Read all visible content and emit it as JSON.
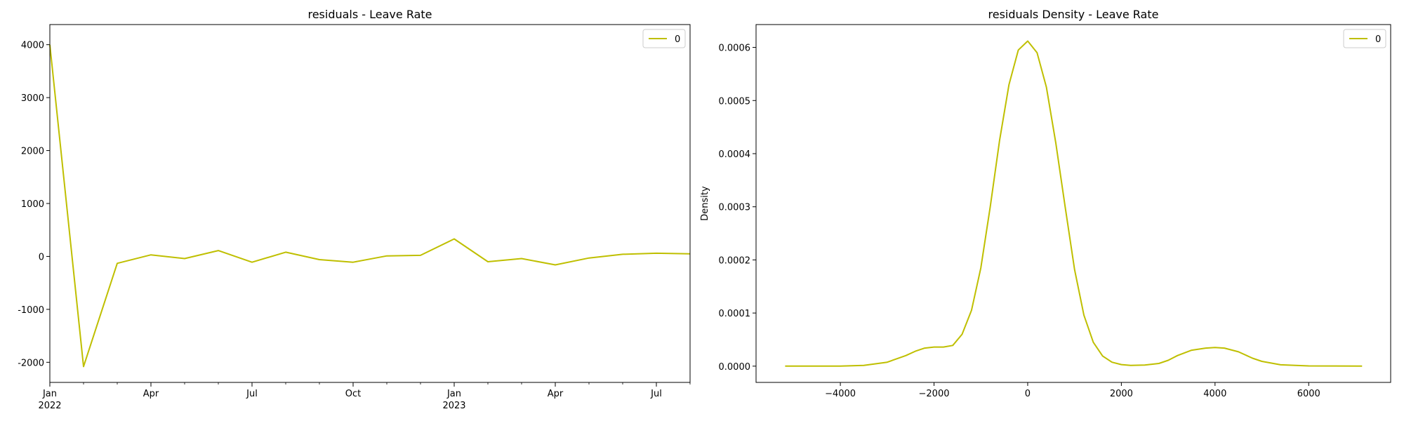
{
  "chart_data": [
    {
      "type": "line",
      "title": "residuals - Leave Rate",
      "xlabel": "",
      "ylabel": "",
      "x_tick_labels": [
        {
          "date": "2022-01",
          "label": "Jan",
          "sub": "2022"
        },
        {
          "date": "2022-04",
          "label": "Apr",
          "sub": ""
        },
        {
          "date": "2022-07",
          "label": "Jul",
          "sub": ""
        },
        {
          "date": "2022-10",
          "label": "Oct",
          "sub": ""
        },
        {
          "date": "2023-01",
          "label": "Jan",
          "sub": "2023"
        },
        {
          "date": "2023-04",
          "label": "Apr",
          "sub": ""
        },
        {
          "date": "2023-07",
          "label": "Jul",
          "sub": ""
        }
      ],
      "y_ticks": [
        -2000,
        -1000,
        0,
        1000,
        2000,
        3000,
        4000
      ],
      "xlim": [
        "2022-01",
        "2023-08"
      ],
      "ylim": [
        -2380,
        4380
      ],
      "legend": {
        "location": "upper right",
        "entries": [
          "0"
        ]
      },
      "series": [
        {
          "name": "0",
          "color": "#bfbf00",
          "x": [
            "2022-01",
            "2022-02",
            "2022-03",
            "2022-04",
            "2022-05",
            "2022-06",
            "2022-07",
            "2022-08",
            "2022-09",
            "2022-10",
            "2022-11",
            "2022-12",
            "2023-01",
            "2023-02",
            "2023-03",
            "2023-04",
            "2023-05",
            "2023-06",
            "2023-07",
            "2023-08"
          ],
          "y": [
            4000,
            -2080,
            -130,
            30,
            -40,
            110,
            -110,
            80,
            -60,
            -110,
            10,
            20,
            330,
            -100,
            -40,
            -160,
            -30,
            40,
            60,
            50
          ]
        }
      ]
    },
    {
      "type": "line",
      "title": "residuals Density - Leave Rate",
      "xlabel": "",
      "ylabel": "Density",
      "x_ticks": [
        -4000,
        -2000,
        0,
        2000,
        4000,
        6000
      ],
      "y_ticks": [
        0.0,
        0.0001,
        0.0002,
        0.0003,
        0.0004,
        0.0005,
        0.0006
      ],
      "y_tick_labels": [
        "0.0000",
        "0.0001",
        "0.0002",
        "0.0003",
        "0.0004",
        "0.0005",
        "0.0006"
      ],
      "xlim": [
        -5800,
        7750
      ],
      "ylim": [
        -3.06e-05,
        0.000643
      ],
      "legend": {
        "location": "upper right",
        "entries": [
          "0"
        ]
      },
      "series": [
        {
          "name": "0",
          "color": "#bfbf00",
          "x": [
            -5180,
            -4000,
            -3500,
            -3000,
            -2600,
            -2400,
            -2200,
            -2000,
            -1800,
            -1600,
            -1400,
            -1200,
            -1000,
            -800,
            -600,
            -400,
            -200,
            0,
            200,
            400,
            600,
            800,
            1000,
            1200,
            1400,
            1600,
            1800,
            2000,
            2200,
            2500,
            2800,
            3000,
            3200,
            3500,
            3800,
            4000,
            4200,
            4500,
            4800,
            5000,
            5400,
            6000,
            7140
          ],
          "y": [
            0.0,
            2e-07,
            1.5e-06,
            7.5e-06,
            2e-05,
            2.8e-05,
            3.4e-05,
            3.6e-05,
            3.6e-05,
            3.9e-05,
            6e-05,
            0.000105,
            0.000185,
            0.0003,
            0.000425,
            0.00053,
            0.000595,
            0.000612,
            0.00059,
            0.000525,
            0.00042,
            0.0003,
            0.000182,
            9.6e-05,
            4.5e-05,
            1.9e-05,
            7.5e-06,
            3e-06,
            1.5e-06,
            2e-06,
            5e-06,
            1.1e-05,
            2e-05,
            3e-05,
            3.4e-05,
            3.5e-05,
            3.4e-05,
            2.7e-05,
            1.5e-05,
            9e-06,
            2.5e-06,
            4e-07,
            0.0
          ]
        }
      ]
    }
  ]
}
